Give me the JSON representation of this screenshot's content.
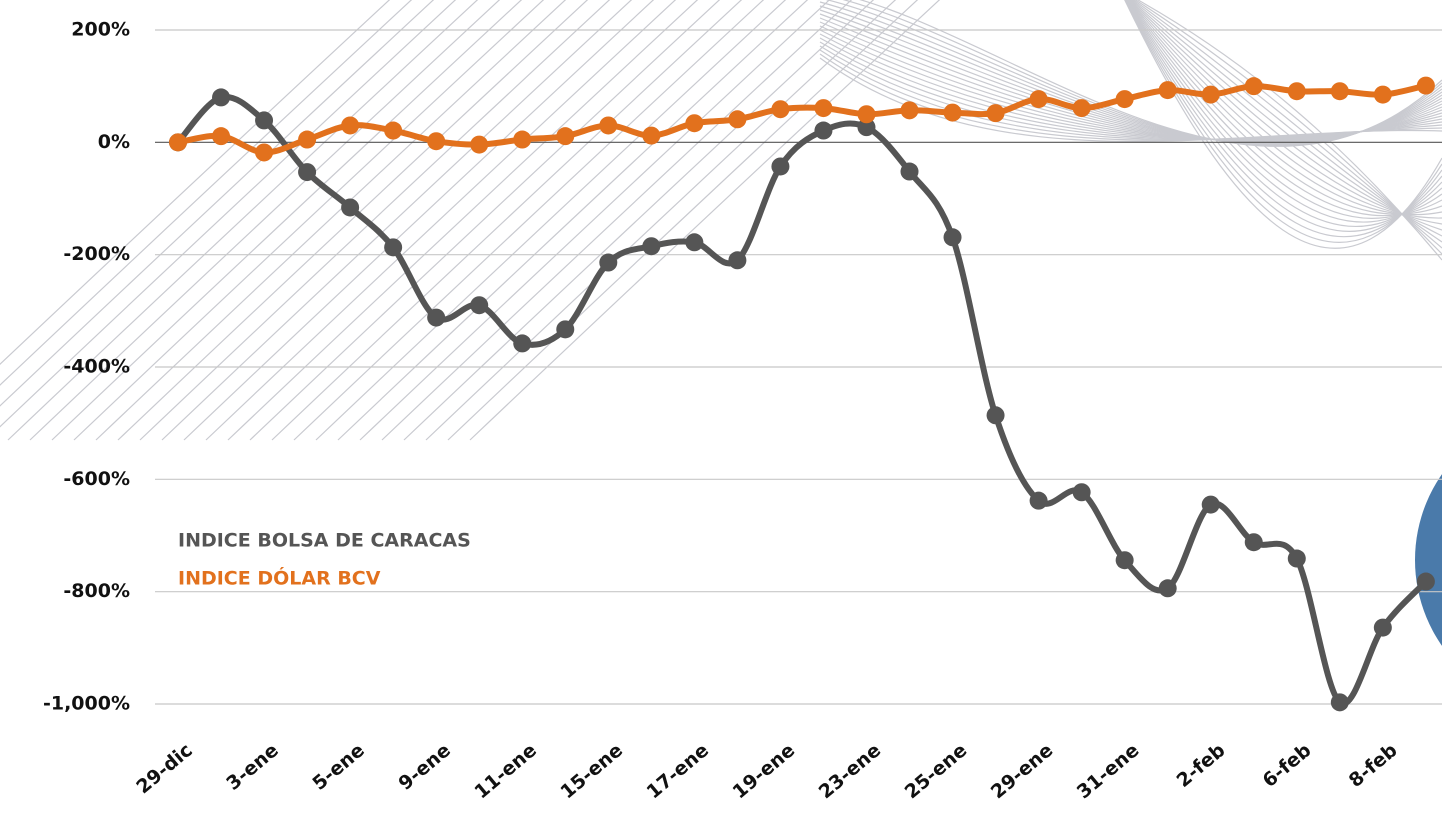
{
  "chart_data": {
    "type": "line",
    "categories": [
      "29-dic",
      null,
      "3-ene",
      null,
      "5-ene",
      null,
      "9-ene",
      null,
      "11-ene",
      null,
      "15-ene",
      null,
      "17-ene",
      null,
      "19-ene",
      null,
      "23-ene",
      null,
      "25-ene",
      null,
      "29-ene",
      null,
      "31-ene",
      null,
      "2-feb",
      null,
      "6-feb",
      null,
      "8-feb",
      null
    ],
    "series": [
      {
        "name": "INDICE BOLSA DE CARACAS",
        "color": "#555555",
        "values": [
          0,
          80,
          39,
          -53,
          -116,
          -187,
          -312,
          -290,
          -358,
          -333,
          -214,
          -185,
          -178,
          -210,
          -43,
          21,
          27,
          -52,
          -169,
          -486,
          -638,
          -623,
          -744,
          -794,
          -645,
          -712,
          -741,
          -997,
          -864,
          -782
        ]
      },
      {
        "name": "INDICE DÓLAR BCV",
        "color": "#e2711d",
        "values": [
          0,
          11,
          -18,
          5,
          30,
          21,
          2,
          -4,
          5,
          11,
          30,
          12,
          34,
          41,
          59,
          61,
          50,
          57,
          53,
          52,
          77,
          61,
          77,
          93,
          85,
          100,
          91,
          91,
          85,
          101
        ]
      }
    ],
    "ylim": [
      -1000,
      200
    ],
    "yticks": [
      {
        "value": 200,
        "label": "200%"
      },
      {
        "value": 0,
        "label": "0%"
      },
      {
        "value": -200,
        "label": "-200%"
      },
      {
        "value": -400,
        "label": "-400%"
      },
      {
        "value": -600,
        "label": "-600%"
      },
      {
        "value": -800,
        "label": "-800%"
      },
      {
        "value": -1000,
        "label": "-1,000%"
      }
    ],
    "grid": true
  }
}
